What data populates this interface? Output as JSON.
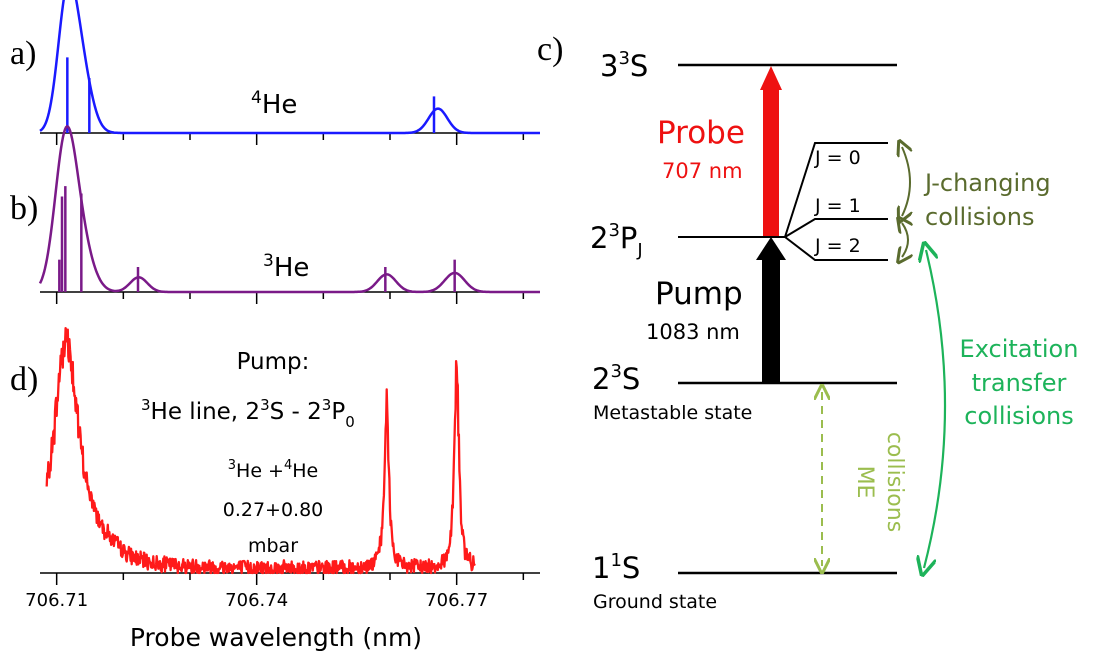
{
  "panels": {
    "a": {
      "letter": "a)",
      "label_sup": "4",
      "label_main": "He",
      "color": "#1a1aff",
      "peaks": [
        [
          706.7115,
          0.97,
          0.0014
        ],
        [
          706.7135,
          0.55,
          0.0016
        ],
        [
          706.7672,
          0.2,
          0.0014
        ]
      ],
      "sticks": [
        [
          706.7116,
          0.62
        ],
        [
          706.7149,
          0.45
        ],
        [
          706.7666,
          0.3
        ]
      ]
    },
    "b": {
      "letter": "b)",
      "label_sup": "3",
      "label_main": "He",
      "color": "#7a1a88",
      "peaks": [
        [
          706.7113,
          0.96,
          0.0016
        ],
        [
          706.7135,
          0.32,
          0.0018
        ],
        [
          706.7223,
          0.1,
          0.0013
        ],
        [
          706.7595,
          0.12,
          0.0014
        ],
        [
          706.7697,
          0.13,
          0.0015
        ]
      ],
      "sticks": [
        [
          706.7104,
          0.22
        ],
        [
          706.7108,
          0.65
        ],
        [
          706.7113,
          0.72
        ],
        [
          706.7137,
          0.67
        ],
        [
          706.7222,
          0.17
        ],
        [
          706.7593,
          0.17
        ],
        [
          706.7697,
          0.22
        ]
      ]
    }
  },
  "chart_data": {
    "type": "line",
    "letter": "d)",
    "xlabel": "Probe wavelength (nm)",
    "xlim": [
      706.7075,
      706.7825
    ],
    "xticks": [
      706.71,
      706.74,
      706.77
    ],
    "xtick_labels": [
      "706.71",
      "706.74",
      "706.77"
    ],
    "color": "#ff1a1a",
    "peaks": [
      {
        "x": 706.7114,
        "height": 0.92,
        "width": 0.0022
      },
      {
        "x": 706.7595,
        "height": 0.64,
        "width": 0.0004
      },
      {
        "x": 706.77,
        "height": 0.82,
        "width": 0.0004
      }
    ],
    "annotation": {
      "title": "Pump:",
      "line_sup1": "3",
      "line_text1": "He line, 2",
      "line_sup2": "3",
      "line_text2": "S - 2",
      "line_sup3": "3",
      "line_text3": "P",
      "line_sub": "0",
      "mix_sup1": "3",
      "mix_text1": "He +",
      "mix_sup2": "4",
      "mix_text2": "He",
      "pressures": "0.27+0.80",
      "unit": "mbar"
    }
  },
  "diagram": {
    "letter": "c)",
    "levels": {
      "top": {
        "base": "3",
        "sup": "3",
        "tail": "S"
      },
      "p": {
        "base": "2",
        "sup": "3",
        "tail": "P",
        "sub": "J"
      },
      "meta": {
        "base": "2",
        "sup": "3",
        "tail": "S"
      },
      "ground": {
        "base": "1",
        "sup": "1",
        "tail": "S"
      }
    },
    "metastable_label": "Metastable state",
    "ground_label": "Ground state",
    "j_labels": [
      "J = 0",
      "J = 1",
      "J = 2"
    ],
    "probe": {
      "label": "Probe",
      "wavelength": "707 nm",
      "color": "#ee1111"
    },
    "pump": {
      "label": "Pump",
      "wavelength": "1083 nm",
      "color": "#000000"
    },
    "j_changing": {
      "line1": "J-changing",
      "line2": "collisions",
      "color": "#5a6b2e"
    },
    "excitation": {
      "line1": "Excitation",
      "line2": "transfer",
      "line3": "collisions",
      "color": "#1db35a"
    },
    "me": {
      "line1": "ME",
      "line2": "collisions",
      "color": "#9bbd4e"
    }
  }
}
